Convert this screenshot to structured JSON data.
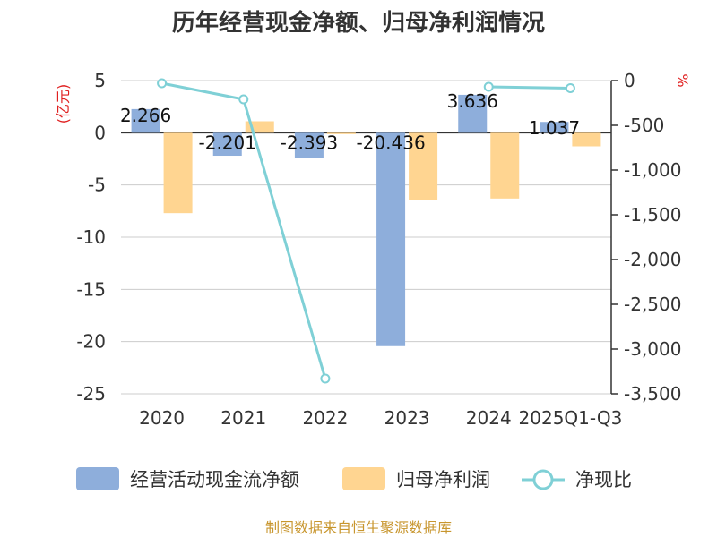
{
  "chart_data": {
    "type": "bar",
    "title": "历年经营现金净额、归母净利润情况",
    "categories": [
      "2020",
      "2021",
      "2022",
      "2023",
      "2024",
      "2025Q1-Q3"
    ],
    "series": [
      {
        "name": "经营活动现金流净额",
        "type": "bar",
        "axis": "left",
        "color": "#8eaedb",
        "values": [
          2.266,
          -2.201,
          -2.393,
          -20.436,
          3.636,
          1.037
        ],
        "labels": [
          "2.266",
          "-2.201",
          "-2.393",
          "-20.436",
          "3.636",
          "1.037"
        ]
      },
      {
        "name": "归母净利润",
        "type": "bar",
        "axis": "left",
        "color": "#ffd591",
        "values": [
          -7.7,
          1.1,
          -0.05,
          -6.4,
          -6.3,
          -1.3
        ]
      },
      {
        "name": "净现比",
        "type": "line",
        "axis": "right",
        "color": "#7fd0d6",
        "values": [
          -30,
          -210,
          -3330,
          null,
          -70,
          -85
        ]
      }
    ],
    "yleft": {
      "unit": "(亿元)",
      "min": -25,
      "max": 5,
      "ticks": [
        5,
        0,
        -5,
        -10,
        -15,
        -20,
        -25
      ],
      "tick_labels": [
        "5",
        "0",
        "-5",
        "-10",
        "-15",
        "-20",
        "-25"
      ]
    },
    "yright": {
      "unit": "%",
      "min": -3500,
      "max": 0,
      "ticks": [
        0,
        -500,
        -1000,
        -1500,
        -2000,
        -2500,
        -3000,
        -3500
      ],
      "tick_labels": [
        "0",
        "-500",
        "-1,000",
        "-1,500",
        "-2,000",
        "-2,500",
        "-3,000",
        "-3,500"
      ]
    },
    "grid": true,
    "legend_position": "bottom"
  },
  "source": "制图数据来自恒生聚源数据库"
}
